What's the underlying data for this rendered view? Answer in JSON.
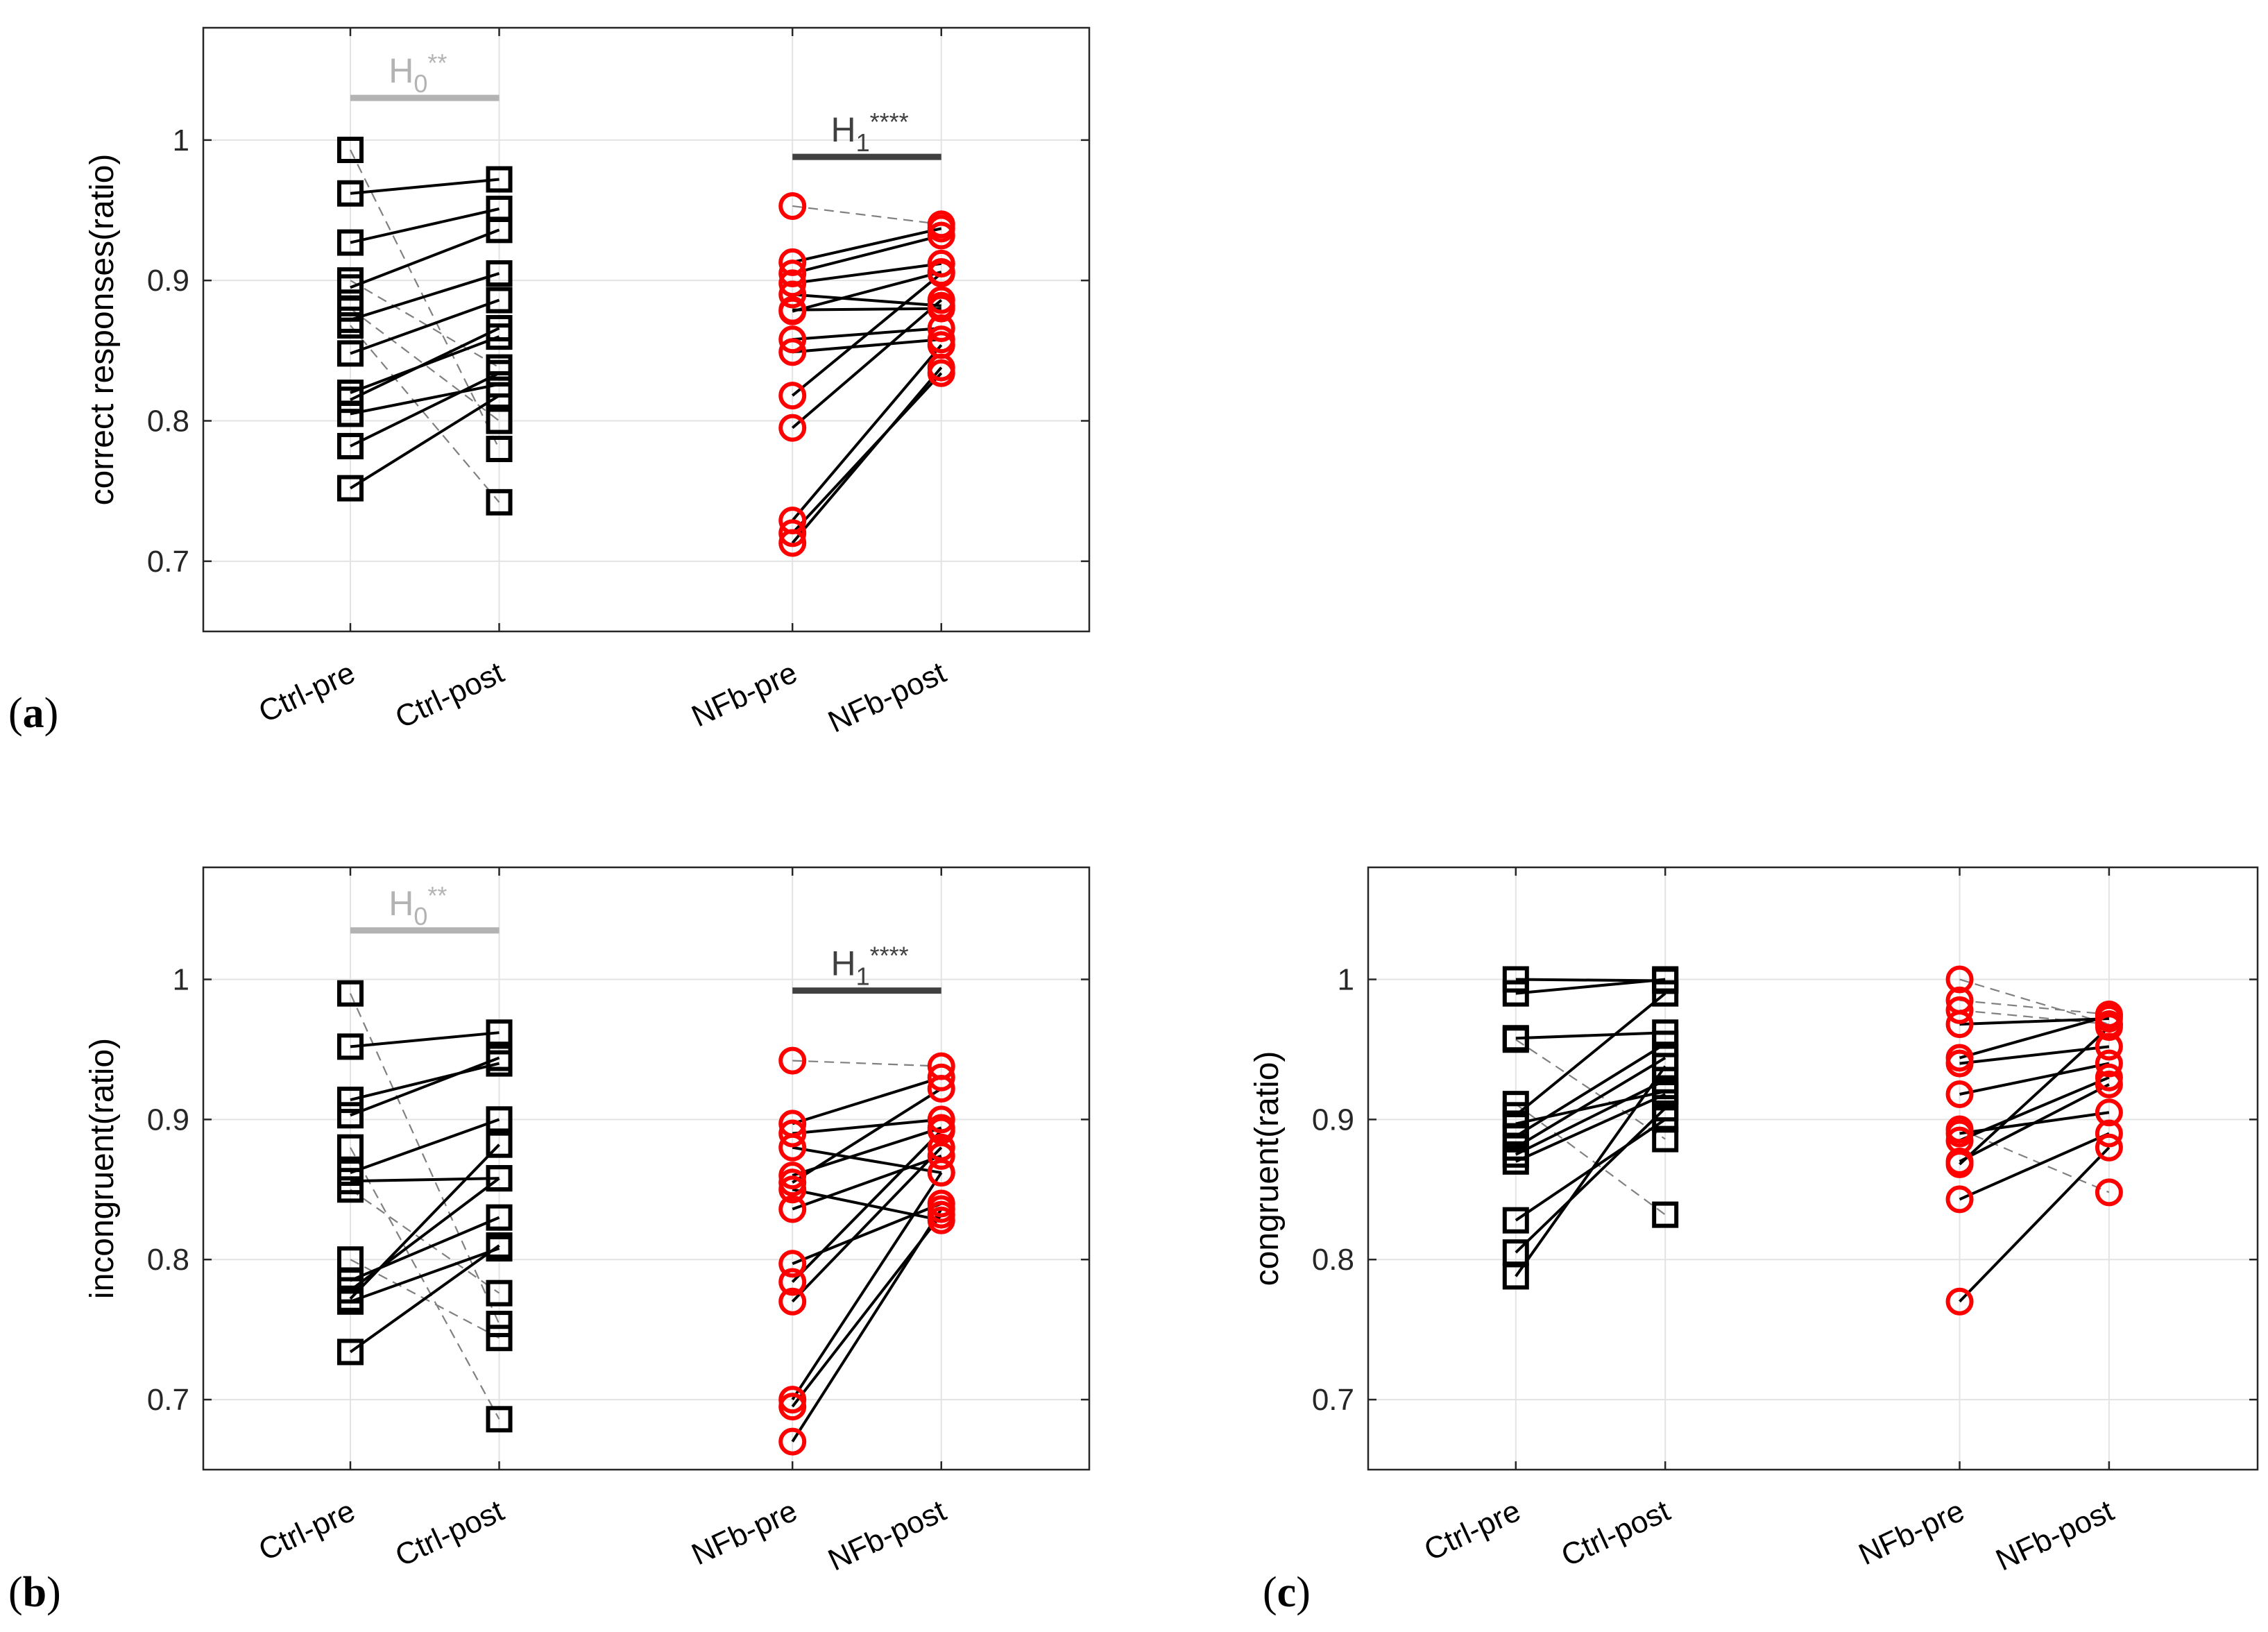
{
  "colors": {
    "ctrl_marker": "#000000",
    "nfb_marker": "#ff0000",
    "solid_line": "#000000",
    "dashed_line": "#808080",
    "h0_bar": "#b3b3b3",
    "h1_bar": "#404040",
    "grid": "#e3e3e3",
    "axes": "#262626"
  },
  "chart_data": [
    {
      "id": "a",
      "panel_label": "(a)",
      "panel_label_text": "a",
      "type": "scatter",
      "ylabel": "correct responses(ratio)",
      "ylim": [
        0.65,
        1.08
      ],
      "yticks": [
        "0.7",
        "0.8",
        "0.9",
        "1"
      ],
      "grid": true,
      "categories": [
        "Ctrl-pre",
        "Ctrl-post",
        "NFb-pre",
        "NFb-post"
      ],
      "annotations": [
        {
          "base": "H",
          "sub": "0",
          "stars": "**",
          "from": 0,
          "to": 1,
          "y": 1.03,
          "color": "h0_bar"
        },
        {
          "base": "H",
          "sub": "1",
          "stars": "****",
          "from": 2,
          "to": 3,
          "y": 0.988,
          "color": "h1_bar"
        }
      ],
      "ctrl_pairs": [
        [
          0.993,
          0.78,
          false
        ],
        [
          0.962,
          0.972,
          true
        ],
        [
          0.927,
          0.951,
          true
        ],
        [
          0.9,
          0.838,
          false
        ],
        [
          0.895,
          0.936,
          true
        ],
        [
          0.88,
          0.8,
          false
        ],
        [
          0.872,
          0.905,
          true
        ],
        [
          0.868,
          0.742,
          false
        ],
        [
          0.848,
          0.886,
          true
        ],
        [
          0.82,
          0.86,
          true
        ],
        [
          0.815,
          0.866,
          true
        ],
        [
          0.805,
          0.826,
          true
        ],
        [
          0.782,
          0.834,
          true
        ],
        [
          0.752,
          0.818,
          true
        ]
      ],
      "nfb_pairs": [
        [
          0.953,
          0.94,
          false
        ],
        [
          0.913,
          0.937,
          true
        ],
        [
          0.905,
          0.932,
          true
        ],
        [
          0.898,
          0.912,
          true
        ],
        [
          0.89,
          0.882,
          true
        ],
        [
          0.879,
          0.88,
          true
        ],
        [
          0.878,
          0.906,
          true
        ],
        [
          0.858,
          0.866,
          true
        ],
        [
          0.849,
          0.858,
          true
        ],
        [
          0.818,
          0.905,
          true
        ],
        [
          0.795,
          0.886,
          true
        ],
        [
          0.729,
          0.854,
          true
        ],
        [
          0.72,
          0.834,
          true
        ],
        [
          0.713,
          0.838,
          true
        ]
      ]
    },
    {
      "id": "b",
      "panel_label": "(b)",
      "panel_label_text": "b",
      "type": "scatter",
      "ylabel": "incongruent(ratio)",
      "ylim": [
        0.65,
        1.08
      ],
      "yticks": [
        "0.7",
        "0.8",
        "0.9",
        "1"
      ],
      "grid": true,
      "categories": [
        "Ctrl-pre",
        "Ctrl-post",
        "NFb-pre",
        "NFb-post"
      ],
      "annotations": [
        {
          "base": "H",
          "sub": "0",
          "stars": "**",
          "from": 0,
          "to": 1,
          "y": 1.035,
          "color": "h0_bar"
        },
        {
          "base": "H",
          "sub": "1",
          "stars": "****",
          "from": 2,
          "to": 3,
          "y": 0.992,
          "color": "h1_bar"
        }
      ],
      "ctrl_pairs": [
        [
          0.99,
          0.754,
          false
        ],
        [
          0.952,
          0.962,
          true
        ],
        [
          0.914,
          0.94,
          true
        ],
        [
          0.903,
          0.944,
          true
        ],
        [
          0.88,
          0.686,
          false
        ],
        [
          0.862,
          0.9,
          true
        ],
        [
          0.856,
          0.858,
          true
        ],
        [
          0.85,
          0.776,
          false
        ],
        [
          0.8,
          0.744,
          false
        ],
        [
          0.785,
          0.83,
          true
        ],
        [
          0.778,
          0.858,
          true
        ],
        [
          0.772,
          0.882,
          true
        ],
        [
          0.77,
          0.808,
          true
        ],
        [
          0.734,
          0.81,
          true
        ]
      ],
      "nfb_pairs": [
        [
          0.942,
          0.938,
          false
        ],
        [
          0.897,
          0.93,
          true
        ],
        [
          0.89,
          0.9,
          true
        ],
        [
          0.88,
          0.862,
          true
        ],
        [
          0.86,
          0.894,
          true
        ],
        [
          0.855,
          0.922,
          true
        ],
        [
          0.85,
          0.828,
          true
        ],
        [
          0.836,
          0.874,
          true
        ],
        [
          0.797,
          0.84,
          true
        ],
        [
          0.784,
          0.892,
          true
        ],
        [
          0.77,
          0.88,
          true
        ],
        [
          0.7,
          0.862,
          true
        ],
        [
          0.695,
          0.832,
          true
        ],
        [
          0.67,
          0.836,
          true
        ]
      ]
    },
    {
      "id": "c",
      "panel_label": "(c)",
      "panel_label_text": "c",
      "type": "scatter",
      "ylabel": "congruent(ratio)",
      "ylim": [
        0.65,
        1.08
      ],
      "yticks": [
        "0.7",
        "0.8",
        "0.9",
        "1"
      ],
      "grid": true,
      "categories": [
        "Ctrl-pre",
        "Ctrl-post",
        "NFb-pre",
        "NFb-post"
      ],
      "annotations": [],
      "ctrl_pairs": [
        [
          1.0,
          0.999,
          true
        ],
        [
          0.99,
          1.0,
          true
        ],
        [
          0.958,
          0.962,
          true
        ],
        [
          0.957,
          0.886,
          false
        ],
        [
          0.911,
          0.832,
          false
        ],
        [
          0.903,
          0.99,
          true
        ],
        [
          0.897,
          0.92,
          true
        ],
        [
          0.888,
          0.954,
          true
        ],
        [
          0.88,
          0.944,
          true
        ],
        [
          0.875,
          0.928,
          true
        ],
        [
          0.87,
          0.918,
          true
        ],
        [
          0.828,
          0.9,
          true
        ],
        [
          0.805,
          0.908,
          true
        ],
        [
          0.788,
          0.938,
          true
        ]
      ],
      "nfb_pairs": [
        [
          1.0,
          0.968,
          false
        ],
        [
          0.985,
          0.975,
          false
        ],
        [
          0.978,
          0.968,
          false
        ],
        [
          0.968,
          0.972,
          true
        ],
        [
          0.944,
          0.974,
          true
        ],
        [
          0.94,
          0.952,
          true
        ],
        [
          0.918,
          0.94,
          true
        ],
        [
          0.893,
          0.848,
          false
        ],
        [
          0.89,
          0.905,
          true
        ],
        [
          0.885,
          0.93,
          true
        ],
        [
          0.87,
          0.925,
          true
        ],
        [
          0.868,
          0.966,
          true
        ],
        [
          0.843,
          0.89,
          true
        ],
        [
          0.77,
          0.88,
          true
        ]
      ]
    }
  ]
}
